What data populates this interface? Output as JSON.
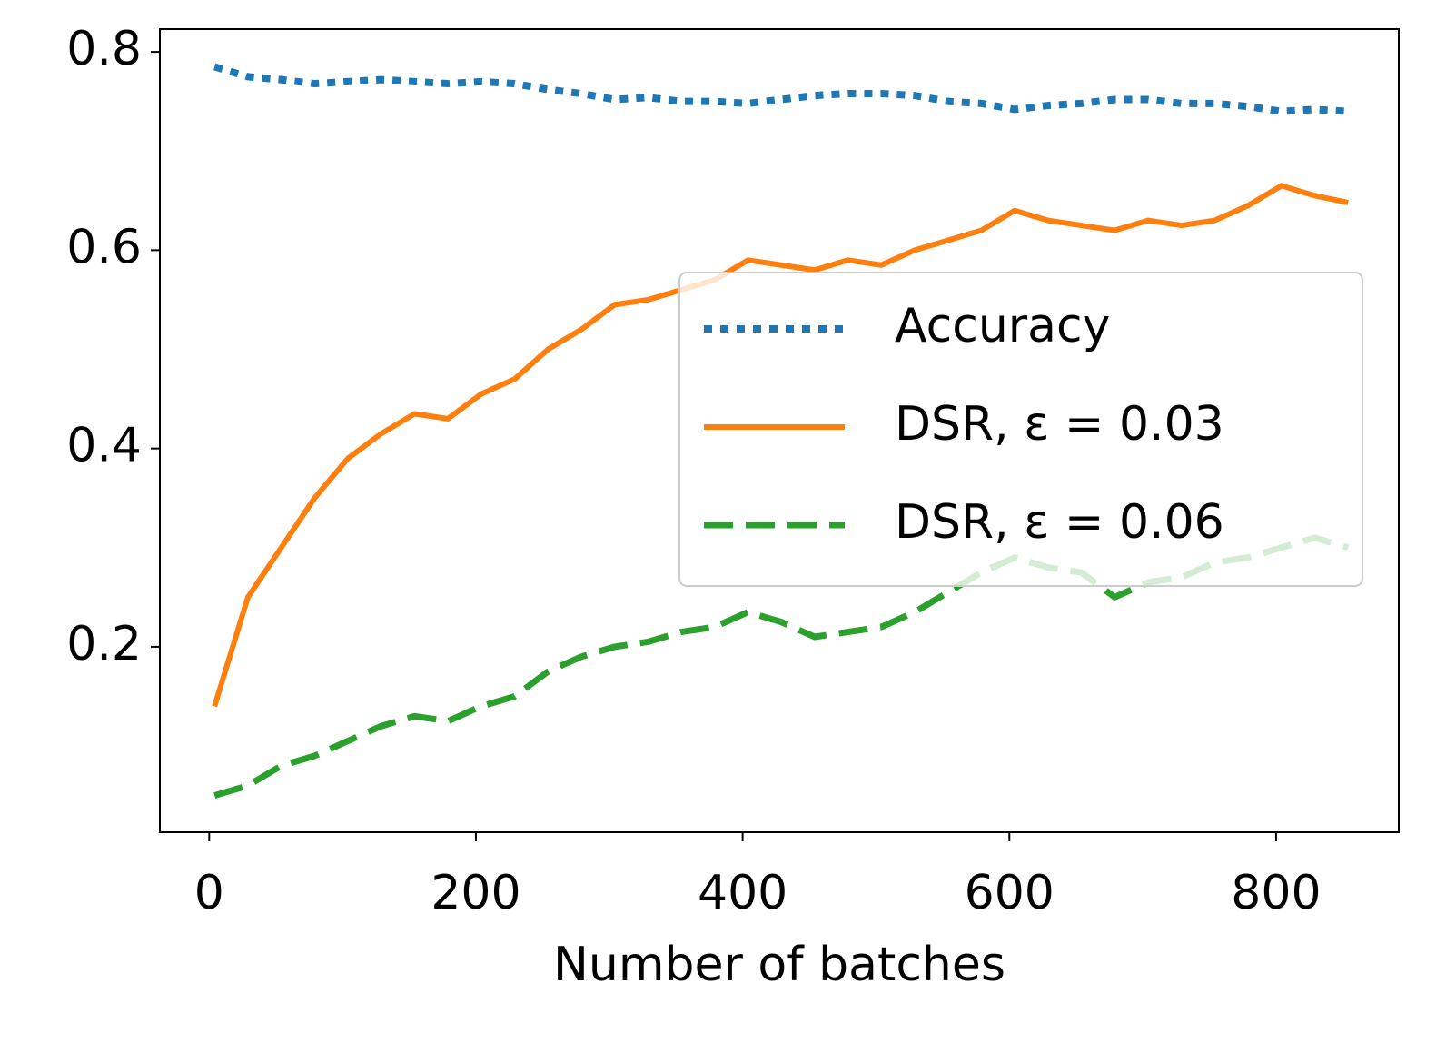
{
  "chart_data": {
    "type": "line",
    "x_label": "Number of batches",
    "x": [
      4,
      29,
      54,
      79,
      104,
      129,
      154,
      179,
      204,
      229,
      254,
      279,
      304,
      329,
      354,
      379,
      404,
      429,
      454,
      479,
      504,
      529,
      554,
      579,
      604,
      629,
      654,
      679,
      704,
      729,
      754,
      779,
      804,
      829,
      854
    ],
    "series": [
      {
        "name": "Accuracy",
        "color": "#1f77b4",
        "style": "dotted",
        "values": [
          0.785,
          0.775,
          0.772,
          0.768,
          0.77,
          0.772,
          0.77,
          0.768,
          0.77,
          0.768,
          0.762,
          0.758,
          0.752,
          0.754,
          0.75,
          0.75,
          0.748,
          0.752,
          0.756,
          0.758,
          0.758,
          0.756,
          0.75,
          0.748,
          0.742,
          0.746,
          0.748,
          0.752,
          0.752,
          0.748,
          0.748,
          0.745,
          0.74,
          0.742,
          0.74
        ]
      },
      {
        "name": "DSR, ε = 0.03",
        "color": "#ff7f0e",
        "style": "solid",
        "values": [
          0.14,
          0.25,
          0.3,
          0.35,
          0.39,
          0.415,
          0.435,
          0.43,
          0.455,
          0.47,
          0.5,
          0.52,
          0.545,
          0.55,
          0.56,
          0.57,
          0.59,
          0.585,
          0.58,
          0.59,
          0.585,
          0.6,
          0.61,
          0.62,
          0.64,
          0.63,
          0.625,
          0.62,
          0.63,
          0.625,
          0.63,
          0.645,
          0.665,
          0.655,
          0.648
        ]
      },
      {
        "name": "DSR, ε = 0.06",
        "color": "#2ca02c",
        "style": "dashed",
        "values": [
          0.05,
          0.06,
          0.08,
          0.09,
          0.105,
          0.12,
          0.13,
          0.125,
          0.14,
          0.15,
          0.175,
          0.19,
          0.2,
          0.205,
          0.215,
          0.22,
          0.235,
          0.225,
          0.21,
          0.215,
          0.22,
          0.235,
          0.255,
          0.275,
          0.29,
          0.28,
          0.275,
          0.25,
          0.265,
          0.27,
          0.285,
          0.29,
          0.3,
          0.31,
          0.3
        ]
      }
    ],
    "xlim": [
      -37,
      892
    ],
    "xticks": [
      0,
      200,
      400,
      600,
      800
    ],
    "ylim": [
      0.013,
      0.823
    ],
    "yticks": [
      0.2,
      0.4,
      0.6,
      0.8
    ],
    "legend": "center right"
  }
}
